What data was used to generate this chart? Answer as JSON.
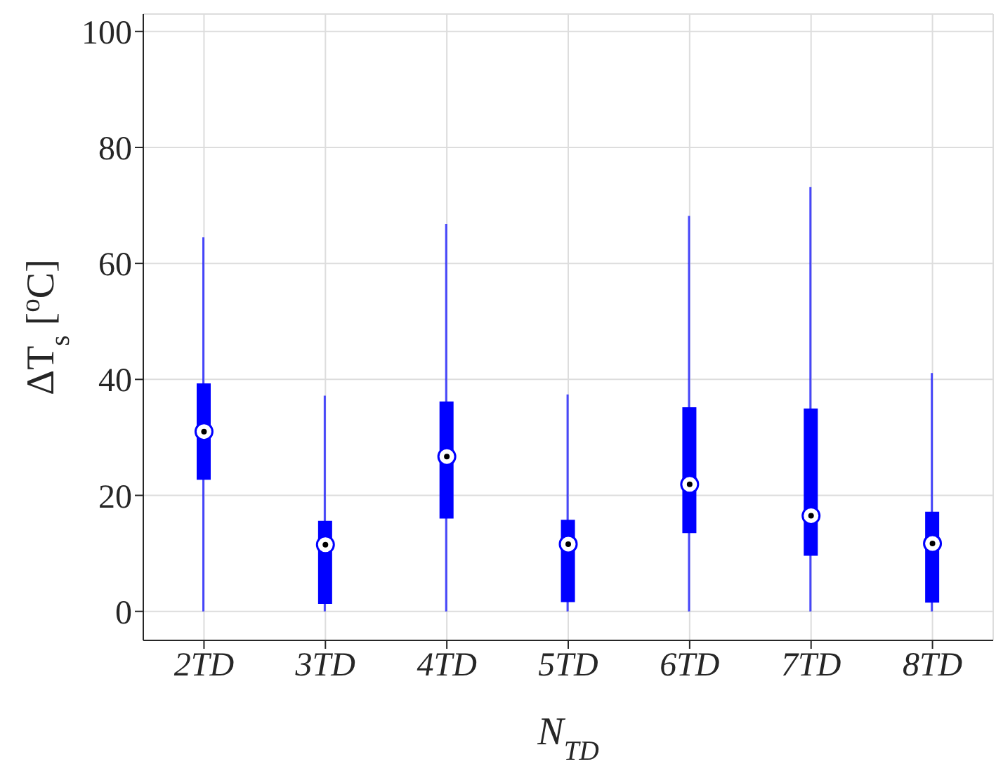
{
  "chart_data": {
    "type": "box",
    "xlabel": "N$_{TD}$",
    "ylabel": "ΔT$_{s}$ [$^{o}$C]",
    "categories": [
      "2TD",
      "3TD",
      "4TD",
      "5TD",
      "6TD",
      "7TD",
      "8TD"
    ],
    "color": "#0000ff",
    "boxes": [
      {
        "low": 0,
        "q1": 22.7,
        "median": 31,
        "q3": 39.3,
        "high": 64.5
      },
      {
        "low": 0,
        "q1": 1.3,
        "median": 11.5,
        "q3": 15.6,
        "high": 37.2
      },
      {
        "low": 0,
        "q1": 16,
        "median": 26.7,
        "q3": 36.2,
        "high": 66.8
      },
      {
        "low": 0,
        "q1": 1.6,
        "median": 11.6,
        "q3": 15.8,
        "high": 37.4
      },
      {
        "low": 0,
        "q1": 13.5,
        "median": 21.9,
        "q3": 35.2,
        "high": 68.2
      },
      {
        "low": 0,
        "q1": 9.6,
        "median": 16.5,
        "q3": 35,
        "high": 73.2
      },
      {
        "low": 0,
        "q1": 1.5,
        "median": 11.7,
        "q3": 17.2,
        "high": 41.1
      }
    ],
    "ylim": [
      -5,
      103
    ],
    "yticks": [
      0,
      20,
      40,
      60,
      80,
      100
    ],
    "grid": true
  }
}
